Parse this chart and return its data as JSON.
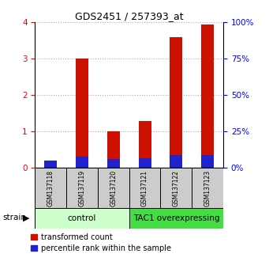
{
  "title": "GDS2451 / 257393_at",
  "samples": [
    "GSM137118",
    "GSM137119",
    "GSM137120",
    "GSM137121",
    "GSM137122",
    "GSM137123"
  ],
  "red_values": [
    0.15,
    3.0,
    1.0,
    1.3,
    3.6,
    3.95
  ],
  "blue_pct": [
    5,
    8,
    6,
    7,
    9,
    9
  ],
  "ylim_left": [
    0,
    4
  ],
  "ylim_right": [
    0,
    100
  ],
  "yticks_left": [
    0,
    1,
    2,
    3,
    4
  ],
  "yticks_right": [
    0,
    25,
    50,
    75,
    100
  ],
  "group_bg_control": "#ccffcc",
  "group_bg_tac1": "#44dd44",
  "strain_label": "strain",
  "bar_width": 0.4,
  "red_color": "#cc1100",
  "blue_color": "#2222cc",
  "legend_red": "transformed count",
  "legend_blue": "percentile rank within the sample",
  "grid_color": "#aaaaaa",
  "sample_bg_color": "#cccccc",
  "title_fontsize": 9
}
